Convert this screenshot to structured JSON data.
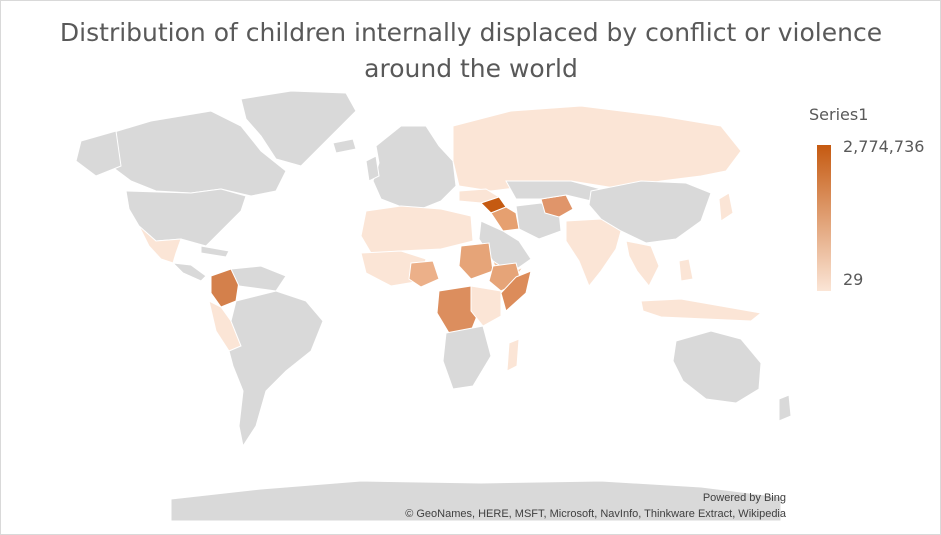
{
  "title": "Distribution of children internally displaced by conflict or violence around the world",
  "legend": {
    "title": "Series1",
    "max_label": "2,774,736",
    "min_label": "29",
    "max_color": "#c55a11",
    "min_color": "#fbe5d6"
  },
  "attribution": {
    "powered_by": "Powered by Bing",
    "credits": "© GeoNames, HERE, MSFT, Microsoft, NavInfo, Thinkware Extract, Wikipedia"
  },
  "colors": {
    "no_data": "#d9d9d9",
    "border": "#ffffff",
    "text": "#595959"
  },
  "highlighted_regions": [
    {
      "name": "Syria",
      "level": "highest"
    },
    {
      "name": "Colombia",
      "level": "high"
    },
    {
      "name": "DR Congo",
      "level": "high"
    },
    {
      "name": "Afghanistan",
      "level": "medium"
    },
    {
      "name": "Somalia",
      "level": "medium"
    },
    {
      "name": "Sudan",
      "level": "medium"
    },
    {
      "name": "Nigeria",
      "level": "medium"
    },
    {
      "name": "Iraq",
      "level": "medium"
    },
    {
      "name": "Russia",
      "level": "low"
    },
    {
      "name": "Mexico",
      "level": "low"
    }
  ]
}
